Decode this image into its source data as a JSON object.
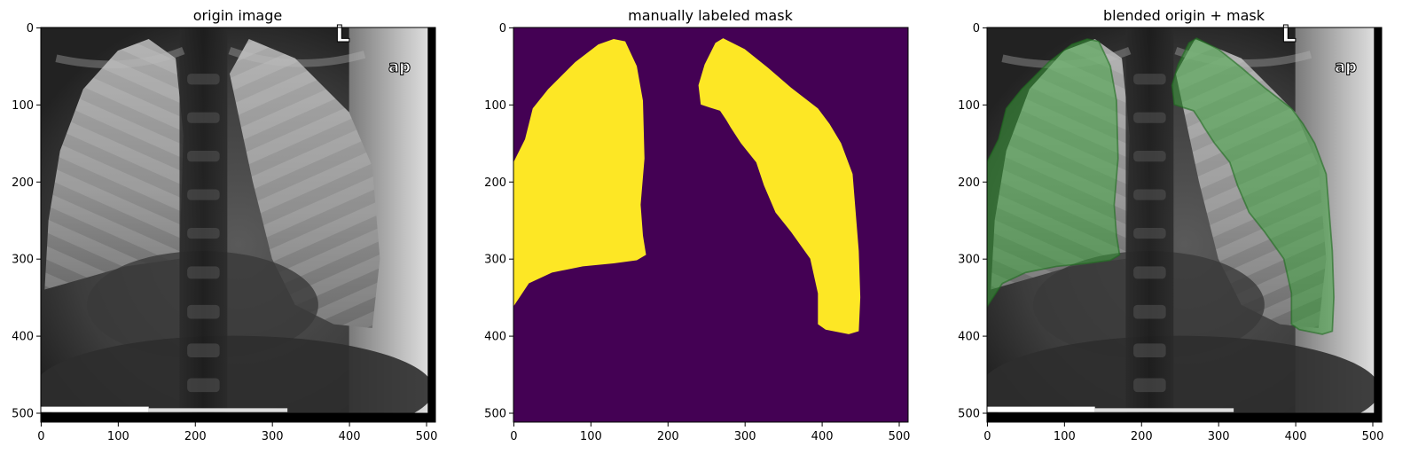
{
  "figure": {
    "panels": [
      {
        "title": "origin image",
        "kind": "xray",
        "x_ticks": [
          "0",
          "100",
          "200",
          "300",
          "400",
          "500"
        ],
        "y_ticks": [
          "0",
          "100",
          "200",
          "300",
          "400",
          "500"
        ],
        "overlay_text": [
          "L",
          "ap"
        ]
      },
      {
        "title": "manually labeled mask",
        "kind": "mask",
        "x_ticks": [
          "0",
          "100",
          "200",
          "300",
          "400",
          "500"
        ],
        "y_ticks": [
          "0",
          "100",
          "200",
          "300",
          "400",
          "500"
        ],
        "colors": {
          "background": "#440154",
          "mask": "#fde725"
        }
      },
      {
        "title": "blended origin + mask",
        "kind": "blend",
        "x_ticks": [
          "0",
          "100",
          "200",
          "300",
          "400",
          "500"
        ],
        "y_ticks": [
          "0",
          "100",
          "200",
          "300",
          "400",
          "500"
        ],
        "overlay_text": [
          "L",
          "ap"
        ],
        "colors": {
          "overlay": "#3aa63a"
        }
      }
    ],
    "image_size": [
      512,
      512
    ]
  }
}
